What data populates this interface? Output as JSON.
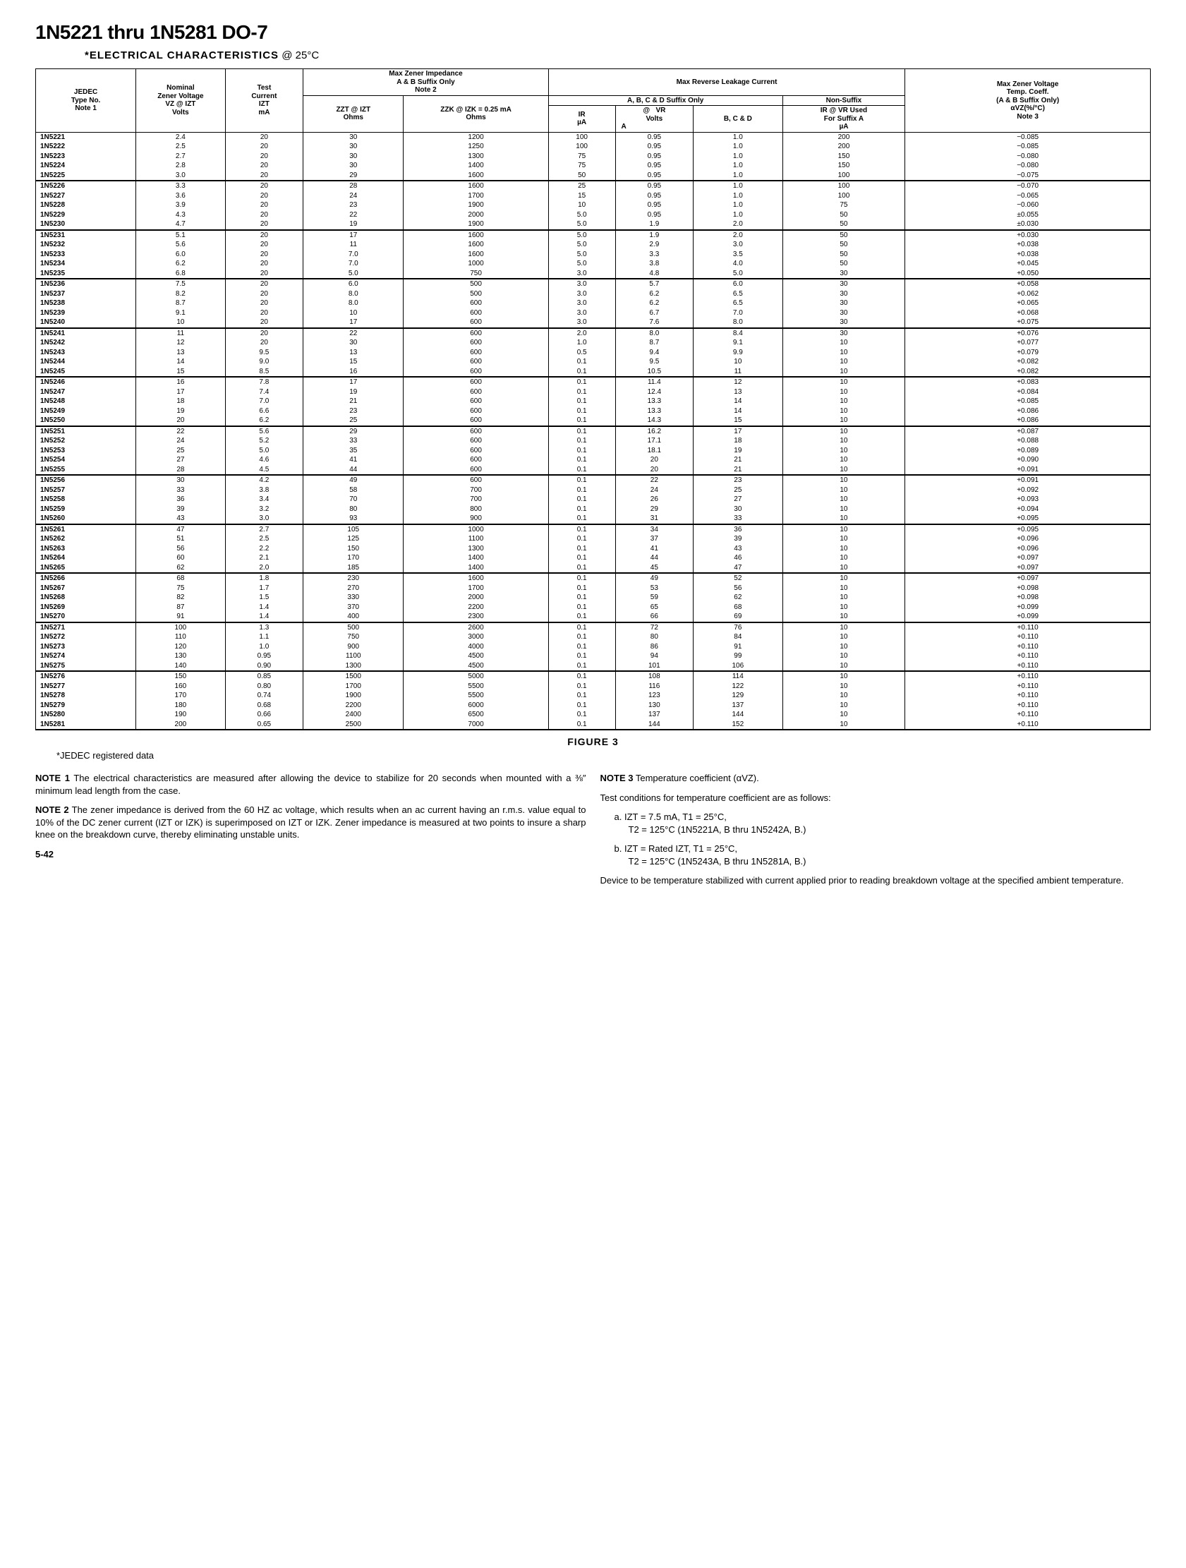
{
  "title": "1N5221 thru 1N5281 DO-7",
  "subtitle_prefix": "*ELECTRICAL CHARACTERISTICS",
  "subtitle_temp": " @ 25°C",
  "headers": {
    "jedec": "JEDEC\nType No.\nNote 1",
    "nominal": "Nominal\nZener Voltage\nVZ @ IZT\nVolts",
    "test_current": "Test\nCurrent\nIZT\nmA",
    "max_imp_group": "Max Zener Impedance\nA & B Suffix Only\nNote 2",
    "zzt": "ZZT @ IZT\nOhms",
    "zzk": "ZZK @ IZK = 0.25 mA\nOhms",
    "leakage_group": "Max Reverse Leakage Current",
    "abcd_group": "A, B, C & D Suffix Only",
    "non_suffix": "Non-Suffix",
    "ir_ua": "IR\nµA",
    "vr_at": "@",
    "vr_volts": "VR\nVolts",
    "vr_a": "A",
    "vr_bcd": "B, C & D",
    "ir_vr_used": "IR @ VR Used\nFor Suffix A\nµA",
    "max_zener_v": "Max Zener Voltage\nTemp. Coeff.\n(A & B Suffix Only)\nαVZ(%/°C)\nNote 3"
  },
  "groups": [
    [
      [
        "1N5221",
        "2.4",
        "20",
        "30",
        "1200",
        "100",
        "0.95",
        "1.0",
        "200",
        "−0.085"
      ],
      [
        "1N5222",
        "2.5",
        "20",
        "30",
        "1250",
        "100",
        "0.95",
        "1.0",
        "200",
        "−0.085"
      ],
      [
        "1N5223",
        "2.7",
        "20",
        "30",
        "1300",
        "75",
        "0.95",
        "1.0",
        "150",
        "−0.080"
      ],
      [
        "1N5224",
        "2.8",
        "20",
        "30",
        "1400",
        "75",
        "0.95",
        "1.0",
        "150",
        "−0.080"
      ],
      [
        "1N5225",
        "3.0",
        "20",
        "29",
        "1600",
        "50",
        "0.95",
        "1.0",
        "100",
        "−0.075"
      ]
    ],
    [
      [
        "1N5226",
        "3.3",
        "20",
        "28",
        "1600",
        "25",
        "0.95",
        "1.0",
        "100",
        "−0.070"
      ],
      [
        "1N5227",
        "3.6",
        "20",
        "24",
        "1700",
        "15",
        "0.95",
        "1.0",
        "100",
        "−0.065"
      ],
      [
        "1N5228",
        "3.9",
        "20",
        "23",
        "1900",
        "10",
        "0.95",
        "1.0",
        "75",
        "−0.060"
      ],
      [
        "1N5229",
        "4.3",
        "20",
        "22",
        "2000",
        "5.0",
        "0.95",
        "1.0",
        "50",
        "±0.055"
      ],
      [
        "1N5230",
        "4.7",
        "20",
        "19",
        "1900",
        "5.0",
        "1.9",
        "2.0",
        "50",
        "±0.030"
      ]
    ],
    [
      [
        "1N5231",
        "5.1",
        "20",
        "17",
        "1600",
        "5.0",
        "1.9",
        "2.0",
        "50",
        "+0.030"
      ],
      [
        "1N5232",
        "5.6",
        "20",
        "11",
        "1600",
        "5.0",
        "2.9",
        "3.0",
        "50",
        "+0.038"
      ],
      [
        "1N5233",
        "6.0",
        "20",
        "7.0",
        "1600",
        "5.0",
        "3.3",
        "3.5",
        "50",
        "+0.038"
      ],
      [
        "1N5234",
        "6.2",
        "20",
        "7.0",
        "1000",
        "5.0",
        "3.8",
        "4.0",
        "50",
        "+0.045"
      ],
      [
        "1N5235",
        "6.8",
        "20",
        "5.0",
        "750",
        "3.0",
        "4.8",
        "5.0",
        "30",
        "+0.050"
      ]
    ],
    [
      [
        "1N5236",
        "7.5",
        "20",
        "6.0",
        "500",
        "3.0",
        "5.7",
        "6.0",
        "30",
        "+0.058"
      ],
      [
        "1N5237",
        "8.2",
        "20",
        "8.0",
        "500",
        "3.0",
        "6.2",
        "6.5",
        "30",
        "+0.062"
      ],
      [
        "1N5238",
        "8.7",
        "20",
        "8.0",
        "600",
        "3.0",
        "6.2",
        "6.5",
        "30",
        "+0.065"
      ],
      [
        "1N5239",
        "9.1",
        "20",
        "10",
        "600",
        "3.0",
        "6.7",
        "7.0",
        "30",
        "+0.068"
      ],
      [
        "1N5240",
        "10",
        "20",
        "17",
        "600",
        "3.0",
        "7.6",
        "8.0",
        "30",
        "+0.075"
      ]
    ],
    [
      [
        "1N5241",
        "11",
        "20",
        "22",
        "600",
        "2.0",
        "8.0",
        "8.4",
        "30",
        "+0.076"
      ],
      [
        "1N5242",
        "12",
        "20",
        "30",
        "600",
        "1.0",
        "8.7",
        "9.1",
        "10",
        "+0.077"
      ],
      [
        "1N5243",
        "13",
        "9.5",
        "13",
        "600",
        "0.5",
        "9.4",
        "9.9",
        "10",
        "+0.079"
      ],
      [
        "1N5244",
        "14",
        "9.0",
        "15",
        "600",
        "0.1",
        "9.5",
        "10",
        "10",
        "+0.082"
      ],
      [
        "1N5245",
        "15",
        "8.5",
        "16",
        "600",
        "0.1",
        "10.5",
        "11",
        "10",
        "+0.082"
      ]
    ],
    [
      [
        "1N5246",
        "16",
        "7.8",
        "17",
        "600",
        "0.1",
        "11.4",
        "12",
        "10",
        "+0.083"
      ],
      [
        "1N5247",
        "17",
        "7.4",
        "19",
        "600",
        "0.1",
        "12.4",
        "13",
        "10",
        "+0.084"
      ],
      [
        "1N5248",
        "18",
        "7.0",
        "21",
        "600",
        "0.1",
        "13.3",
        "14",
        "10",
        "+0.085"
      ],
      [
        "1N5249",
        "19",
        "6.6",
        "23",
        "600",
        "0.1",
        "13.3",
        "14",
        "10",
        "+0.086"
      ],
      [
        "1N5250",
        "20",
        "6.2",
        "25",
        "600",
        "0.1",
        "14.3",
        "15",
        "10",
        "+0.086"
      ]
    ],
    [
      [
        "1N5251",
        "22",
        "5.6",
        "29",
        "600",
        "0.1",
        "16.2",
        "17",
        "10",
        "+0.087"
      ],
      [
        "1N5252",
        "24",
        "5.2",
        "33",
        "600",
        "0.1",
        "17.1",
        "18",
        "10",
        "+0.088"
      ],
      [
        "1N5253",
        "25",
        "5.0",
        "35",
        "600",
        "0.1",
        "18.1",
        "19",
        "10",
        "+0.089"
      ],
      [
        "1N5254",
        "27",
        "4.6",
        "41",
        "600",
        "0.1",
        "20",
        "21",
        "10",
        "+0.090"
      ],
      [
        "1N5255",
        "28",
        "4.5",
        "44",
        "600",
        "0.1",
        "20",
        "21",
        "10",
        "+0.091"
      ]
    ],
    [
      [
        "1N5256",
        "30",
        "4.2",
        "49",
        "600",
        "0.1",
        "22",
        "23",
        "10",
        "+0.091"
      ],
      [
        "1N5257",
        "33",
        "3.8",
        "58",
        "700",
        "0.1",
        "24",
        "25",
        "10",
        "+0.092"
      ],
      [
        "1N5258",
        "36",
        "3.4",
        "70",
        "700",
        "0.1",
        "26",
        "27",
        "10",
        "+0.093"
      ],
      [
        "1N5259",
        "39",
        "3.2",
        "80",
        "800",
        "0.1",
        "29",
        "30",
        "10",
        "+0.094"
      ],
      [
        "1N5260",
        "43",
        "3.0",
        "93",
        "900",
        "0.1",
        "31",
        "33",
        "10",
        "+0.095"
      ]
    ],
    [
      [
        "1N5261",
        "47",
        "2.7",
        "105",
        "1000",
        "0.1",
        "34",
        "36",
        "10",
        "+0.095"
      ],
      [
        "1N5262",
        "51",
        "2.5",
        "125",
        "1100",
        "0.1",
        "37",
        "39",
        "10",
        "+0.096"
      ],
      [
        "1N5263",
        "56",
        "2.2",
        "150",
        "1300",
        "0.1",
        "41",
        "43",
        "10",
        "+0.096"
      ],
      [
        "1N5264",
        "60",
        "2.1",
        "170",
        "1400",
        "0.1",
        "44",
        "46",
        "10",
        "+0.097"
      ],
      [
        "1N5265",
        "62",
        "2.0",
        "185",
        "1400",
        "0.1",
        "45",
        "47",
        "10",
        "+0.097"
      ]
    ],
    [
      [
        "1N5266",
        "68",
        "1.8",
        "230",
        "1600",
        "0.1",
        "49",
        "52",
        "10",
        "+0.097"
      ],
      [
        "1N5267",
        "75",
        "1.7",
        "270",
        "1700",
        "0.1",
        "53",
        "56",
        "10",
        "+0.098"
      ],
      [
        "1N5268",
        "82",
        "1.5",
        "330",
        "2000",
        "0.1",
        "59",
        "62",
        "10",
        "+0.098"
      ],
      [
        "1N5269",
        "87",
        "1.4",
        "370",
        "2200",
        "0.1",
        "65",
        "68",
        "10",
        "+0.099"
      ],
      [
        "1N5270",
        "91",
        "1.4",
        "400",
        "2300",
        "0.1",
        "66",
        "69",
        "10",
        "+0.099"
      ]
    ],
    [
      [
        "1N5271",
        "100",
        "1.3",
        "500",
        "2600",
        "0.1",
        "72",
        "76",
        "10",
        "+0.110"
      ],
      [
        "1N5272",
        "110",
        "1.1",
        "750",
        "3000",
        "0.1",
        "80",
        "84",
        "10",
        "+0.110"
      ],
      [
        "1N5273",
        "120",
        "1.0",
        "900",
        "4000",
        "0.1",
        "86",
        "91",
        "10",
        "+0.110"
      ],
      [
        "1N5274",
        "130",
        "0.95",
        "1100",
        "4500",
        "0.1",
        "94",
        "99",
        "10",
        "+0.110"
      ],
      [
        "1N5275",
        "140",
        "0.90",
        "1300",
        "4500",
        "0.1",
        "101",
        "106",
        "10",
        "+0.110"
      ]
    ],
    [
      [
        "1N5276",
        "150",
        "0.85",
        "1500",
        "5000",
        "0.1",
        "108",
        "114",
        "10",
        "+0.110"
      ],
      [
        "1N5277",
        "160",
        "0.80",
        "1700",
        "5500",
        "0.1",
        "116",
        "122",
        "10",
        "+0.110"
      ],
      [
        "1N5278",
        "170",
        "0.74",
        "1900",
        "5500",
        "0.1",
        "123",
        "129",
        "10",
        "+0.110"
      ],
      [
        "1N5279",
        "180",
        "0.68",
        "2200",
        "6000",
        "0.1",
        "130",
        "137",
        "10",
        "+0.110"
      ],
      [
        "1N5280",
        "190",
        "0.66",
        "2400",
        "6500",
        "0.1",
        "137",
        "144",
        "10",
        "+0.110"
      ],
      [
        "1N5281",
        "200",
        "0.65",
        "2500",
        "7000",
        "0.1",
        "144",
        "152",
        "10",
        "+0.110"
      ]
    ]
  ],
  "figure_caption": "FIGURE 3",
  "jedec_note": "*JEDEC registered data",
  "note1_label": "NOTE 1",
  "note1_text": " The electrical characteristics are measured after allowing the device to stabilize for 20 seconds when mounted with a ⅜″ minimum lead length from the case.",
  "note2_label": "NOTE 2",
  "note2_text": " The zener impedance is derived from the 60 HZ ac voltage, which results when an ac current having an r.m.s. value equal to 10% of the DC zener current (IZT or IZK) is superimposed on IZT or IZK. Zener impedance is measured at two points to insure a sharp knee on the breakdown curve, thereby eliminating unstable units.",
  "page_num": "5-42",
  "note3_label": "NOTE 3",
  "note3_intro": " Temperature coefficient (αVZ).",
  "note3_text": "Test conditions for temperature coefficient are as follows:",
  "note3_a": "a. IZT = 7.5 mA, T1 = 25°C,",
  "note3_a2": "T2 = 125°C (1N5221A, B thru 1N5242A, B.)",
  "note3_b": "b. IZT = Rated IZT, T1 = 25°C,",
  "note3_b2": "T2 = 125°C (1N5243A, B thru 1N5281A, B.)",
  "note3_tail": "Device to be temperature stabilized with current applied prior to reading breakdown voltage at the specified ambient temperature."
}
